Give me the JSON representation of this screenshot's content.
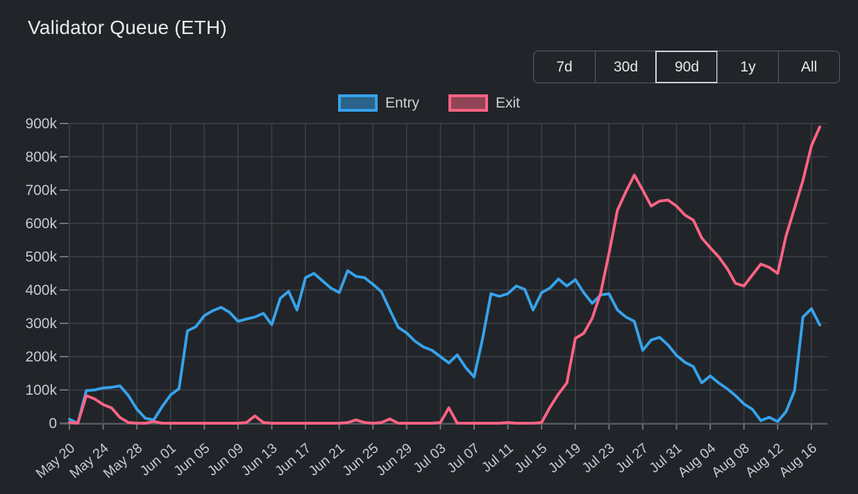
{
  "title": "Validator Queue (ETH)",
  "time_range": {
    "options": [
      "7d",
      "30d",
      "90d",
      "1y",
      "All"
    ],
    "active": "90d"
  },
  "legend": {
    "items": [
      {
        "label": "Entry",
        "color": "#36a2eb"
      },
      {
        "label": "Exit",
        "color": "#ff6384"
      }
    ]
  },
  "colors": {
    "background": "#212529",
    "grid": "#3d424a",
    "axis": "#565b63",
    "tick": "#70757c",
    "tick_text": "#c6cbd1",
    "title_text": "#e9ecef",
    "entry": "#36a2eb",
    "exit": "#ff6384"
  },
  "chart_data": {
    "type": "line",
    "title": "Validator Queue (ETH)",
    "xlabel": "",
    "ylabel": "",
    "unit_note": "values_k are in thousands of ETH",
    "grid": true,
    "legend_position": "top",
    "ylim_k": [
      0,
      900
    ],
    "yticks_k": [
      0,
      100,
      200,
      300,
      400,
      500,
      600,
      700,
      800,
      900
    ],
    "ytick_labels": [
      "0",
      "100k",
      "200k",
      "300k",
      "400k",
      "500k",
      "600k",
      "700k",
      "800k",
      "900k"
    ],
    "x_tick_every": 4,
    "x": [
      "May 20",
      "May 21",
      "May 22",
      "May 23",
      "May 24",
      "May 25",
      "May 26",
      "May 27",
      "May 28",
      "May 29",
      "May 30",
      "May 31",
      "Jun 01",
      "Jun 02",
      "Jun 03",
      "Jun 04",
      "Jun 05",
      "Jun 06",
      "Jun 07",
      "Jun 08",
      "Jun 09",
      "Jun 10",
      "Jun 11",
      "Jun 12",
      "Jun 13",
      "Jun 14",
      "Jun 15",
      "Jun 16",
      "Jun 17",
      "Jun 18",
      "Jun 19",
      "Jun 20",
      "Jun 21",
      "Jun 22",
      "Jun 23",
      "Jun 24",
      "Jun 25",
      "Jun 26",
      "Jun 27",
      "Jun 28",
      "Jun 29",
      "Jun 30",
      "Jul 01",
      "Jul 02",
      "Jul 03",
      "Jul 04",
      "Jul 05",
      "Jul 06",
      "Jul 07",
      "Jul 08",
      "Jul 09",
      "Jul 10",
      "Jul 11",
      "Jul 12",
      "Jul 13",
      "Jul 14",
      "Jul 15",
      "Jul 16",
      "Jul 17",
      "Jul 18",
      "Jul 19",
      "Jul 20",
      "Jul 21",
      "Jul 22",
      "Jul 23",
      "Jul 24",
      "Jul 25",
      "Jul 26",
      "Jul 27",
      "Jul 28",
      "Jul 29",
      "Jul 30",
      "Jul 31",
      "Aug 01",
      "Aug 02",
      "Aug 03",
      "Aug 04",
      "Aug 05",
      "Aug 06",
      "Aug 07",
      "Aug 08",
      "Aug 09",
      "Aug 10",
      "Aug 11",
      "Aug 12",
      "Aug 13",
      "Aug 14",
      "Aug 15",
      "Aug 16",
      "Aug 17"
    ],
    "series": [
      {
        "name": "Entry",
        "color": "#36a2eb",
        "values_k": [
          12,
          0,
          98,
          100,
          106,
          108,
          112,
          83,
          42,
          15,
          10,
          50,
          85,
          104,
          277,
          290,
          323,
          338,
          348,
          333,
          306,
          313,
          319,
          330,
          296,
          375,
          396,
          340,
          437,
          450,
          428,
          406,
          392,
          458,
          441,
          437,
          417,
          395,
          340,
          288,
          271,
          246,
          229,
          219,
          200,
          181,
          205,
          167,
          139,
          254,
          389,
          381,
          389,
          412,
          402,
          340,
          392,
          406,
          433,
          412,
          431,
          392,
          360,
          385,
          389,
          340,
          319,
          306,
          219,
          250,
          258,
          235,
          204,
          183,
          170,
          121,
          142,
          121,
          104,
          83,
          58,
          42,
          8,
          18,
          5,
          35,
          98,
          319,
          344,
          295
        ]
      },
      {
        "name": "Exit",
        "color": "#ff6384",
        "values_k": [
          2,
          0,
          83,
          73,
          56,
          46,
          17,
          2,
          0,
          0,
          5,
          0,
          0,
          0,
          0,
          0,
          0,
          0,
          0,
          0,
          0,
          2,
          22,
          2,
          0,
          0,
          0,
          0,
          0,
          0,
          0,
          0,
          0,
          2,
          10,
          2,
          0,
          2,
          13,
          0,
          0,
          0,
          0,
          0,
          2,
          46,
          0,
          0,
          0,
          0,
          0,
          0,
          2,
          0,
          0,
          0,
          2,
          48,
          88,
          121,
          255,
          270,
          315,
          390,
          510,
          640,
          695,
          745,
          700,
          652,
          667,
          670,
          652,
          625,
          610,
          556,
          527,
          500,
          465,
          420,
          412,
          445,
          478,
          468,
          450,
          563,
          646,
          729,
          833,
          890
        ]
      }
    ]
  }
}
